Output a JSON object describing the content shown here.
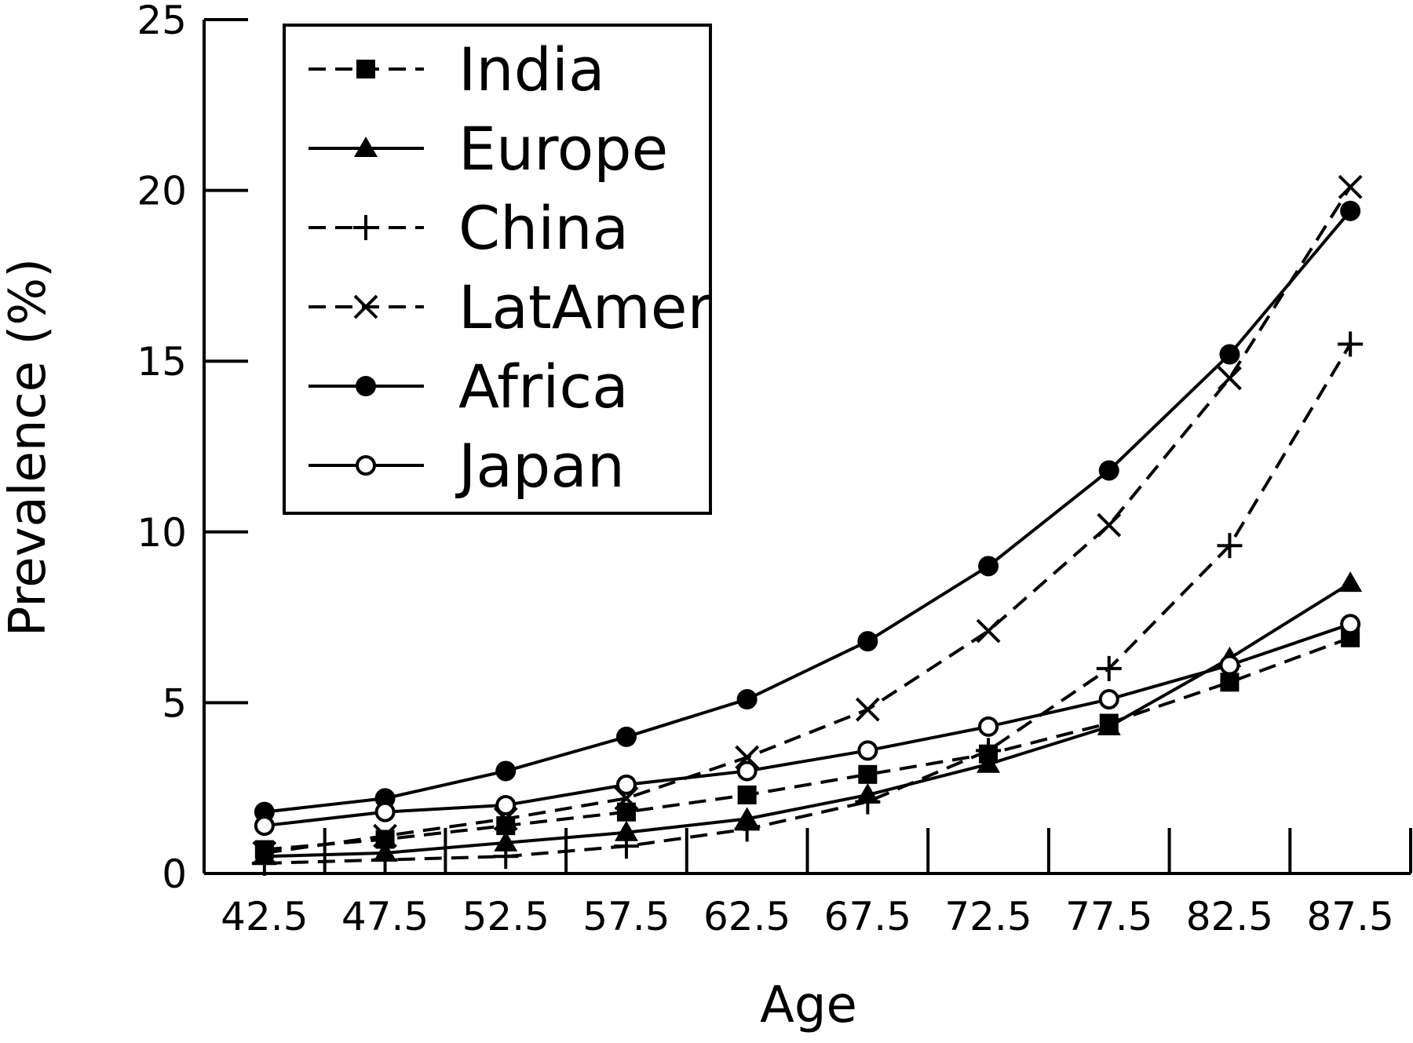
{
  "chart_data": {
    "type": "line",
    "xlabel": "Age",
    "ylabel": "Prevalence (%)",
    "x": [
      42.5,
      47.5,
      52.5,
      57.5,
      62.5,
      67.5,
      72.5,
      77.5,
      82.5,
      87.5
    ],
    "x_tick_labels": [
      "42.5",
      "47.5",
      "52.5",
      "57.5",
      "62.5",
      "67.5",
      "72.5",
      "77.5",
      "82.5",
      "87.5"
    ],
    "y_ticks": [
      0,
      5,
      10,
      15,
      20,
      25
    ],
    "y_tick_labels": [
      "0",
      "5",
      "10",
      "15",
      "20",
      "25"
    ],
    "ylim": [
      0,
      25
    ],
    "grid": false,
    "legend_position": "top-left",
    "series": [
      {
        "name": "India",
        "line": "dashed",
        "marker": "square",
        "values": [
          0.7,
          1.0,
          1.4,
          1.8,
          2.3,
          2.9,
          3.5,
          4.4,
          5.6,
          6.9
        ]
      },
      {
        "name": "Europe",
        "line": "solid",
        "marker": "triangle",
        "values": [
          0.5,
          0.6,
          0.9,
          1.2,
          1.6,
          2.3,
          3.2,
          4.3,
          6.3,
          8.5
        ]
      },
      {
        "name": "China",
        "line": "dashed",
        "marker": "plus",
        "values": [
          0.3,
          0.4,
          0.5,
          0.8,
          1.3,
          2.1,
          3.6,
          6.0,
          9.6,
          15.5
        ]
      },
      {
        "name": "LatAmer",
        "line": "dashed",
        "marker": "x",
        "values": [
          0.6,
          1.1,
          1.6,
          2.2,
          3.4,
          4.8,
          7.1,
          10.2,
          14.5,
          20.1
        ]
      },
      {
        "name": "Africa",
        "line": "solid",
        "marker": "circle-filled",
        "values": [
          1.8,
          2.2,
          3.0,
          4.0,
          5.1,
          6.8,
          9.0,
          11.8,
          15.2,
          19.4
        ]
      },
      {
        "name": "Japan",
        "line": "solid",
        "marker": "circle-open",
        "values": [
          1.4,
          1.8,
          2.0,
          2.6,
          3.0,
          3.6,
          4.3,
          5.1,
          6.1,
          7.3
        ]
      }
    ]
  }
}
